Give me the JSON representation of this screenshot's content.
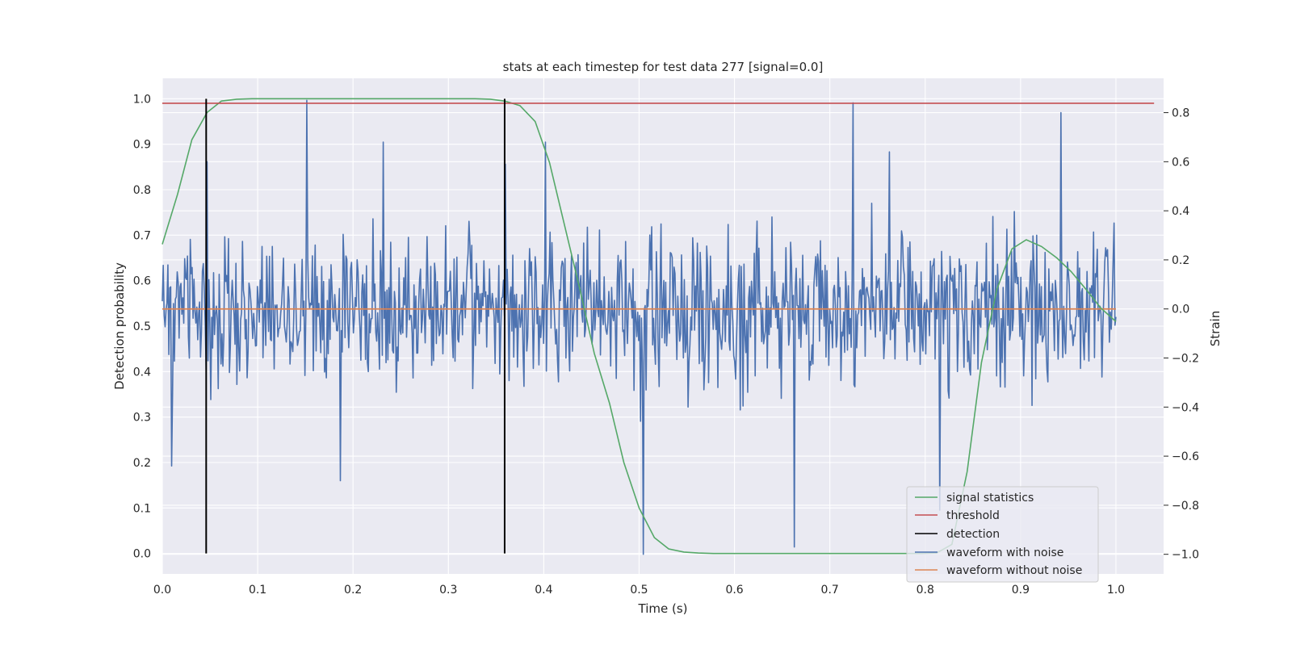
{
  "chart_data": {
    "type": "line",
    "title": "stats at each timestep for test data 277 [signal=0.0]",
    "xlabel": "Time (s)",
    "ylabel": "Detection probability",
    "y2label": "Strain",
    "xlim": [
      0.0,
      1.05
    ],
    "ylim": [
      -0.045,
      1.045
    ],
    "y2lim": [
      -1.08,
      0.94
    ],
    "xticks": [
      "0.0",
      "0.1",
      "0.2",
      "0.3",
      "0.4",
      "0.5",
      "0.6",
      "0.7",
      "0.8",
      "0.9",
      "1.0"
    ],
    "yticks": [
      "0.0",
      "0.1",
      "0.2",
      "0.3",
      "0.4",
      "0.5",
      "0.6",
      "0.7",
      "0.8",
      "0.9",
      "1.0"
    ],
    "y2ticks": [
      "−1.0",
      "−0.8",
      "−0.6",
      "−0.4",
      "−0.2",
      "0.0",
      "0.2",
      "0.4",
      "0.6",
      "0.8"
    ],
    "grid": true,
    "legend_position": "lower-right",
    "colors": {
      "signal_statistics": "#55a868",
      "threshold": "#c44e52",
      "detection": "#000000",
      "waveform_with_noise": "#4c72b0",
      "waveform_without_noise": "#dd8452",
      "plot_background": "#eaeaf2",
      "grid": "#ffffff"
    },
    "series": [
      {
        "name": "signal statistics",
        "axis": "left",
        "x": [
          0.0,
          0.016,
          0.031,
          0.047,
          0.062,
          0.078,
          0.094,
          0.109,
          0.125,
          0.141,
          0.156,
          0.172,
          0.188,
          0.203,
          0.219,
          0.234,
          0.25,
          0.266,
          0.281,
          0.297,
          0.312,
          0.328,
          0.344,
          0.359,
          0.375,
          0.391,
          0.406,
          0.422,
          0.438,
          0.453,
          0.469,
          0.484,
          0.5,
          0.516,
          0.531,
          0.547,
          0.562,
          0.578,
          0.594,
          0.609,
          0.625,
          0.641,
          0.656,
          0.672,
          0.688,
          0.703,
          0.719,
          0.734,
          0.75,
          0.766,
          0.781,
          0.797,
          0.812,
          0.828,
          0.844,
          0.859,
          0.875,
          0.891,
          0.906,
          0.922,
          0.938,
          0.953,
          0.969,
          0.984,
          1.0
        ],
        "values": [
          0.68,
          0.79,
          0.91,
          0.97,
          0.995,
          0.999,
          1.0,
          1.0,
          1.0,
          1.0,
          1.0,
          1.0,
          1.0,
          1.0,
          1.0,
          1.0,
          1.0,
          1.0,
          1.0,
          1.0,
          1.0,
          1.0,
          0.999,
          0.995,
          0.985,
          0.95,
          0.86,
          0.72,
          0.58,
          0.44,
          0.33,
          0.2,
          0.1,
          0.035,
          0.01,
          0.003,
          0.001,
          0.0,
          0.0,
          0.0,
          0.0,
          0.0,
          0.0,
          0.0,
          0.0,
          0.0,
          0.0,
          0.0,
          0.0,
          0.0,
          0.0,
          0.0,
          0.001,
          0.02,
          0.18,
          0.42,
          0.58,
          0.67,
          0.69,
          0.675,
          0.65,
          0.62,
          0.58,
          0.54,
          0.51
        ]
      },
      {
        "name": "threshold",
        "axis": "left",
        "x": [
          0.0,
          1.04
        ],
        "values": [
          0.99,
          0.99
        ]
      },
      {
        "name": "detection",
        "axis": "left",
        "segments": [
          {
            "x": 0.046,
            "y0": 0.0,
            "y1": 1.0
          },
          {
            "x": 0.359,
            "y0": 0.0,
            "y1": 1.0
          }
        ]
      },
      {
        "name": "waveform with noise",
        "axis": "right",
        "x_start": 0.0,
        "x_end": 1.0,
        "sample_count": 1024,
        "noise_sigma": 0.21,
        "peaks": [
          {
            "x": 0.01,
            "value": -0.64
          },
          {
            "x": 0.047,
            "value": 0.6
          },
          {
            "x": 0.152,
            "value": 0.85
          },
          {
            "x": 0.187,
            "value": -0.7
          },
          {
            "x": 0.232,
            "value": 0.68
          },
          {
            "x": 0.36,
            "value": 0.59
          },
          {
            "x": 0.402,
            "value": 0.68
          },
          {
            "x": 0.504,
            "value": -1.0
          },
          {
            "x": 0.663,
            "value": -0.97
          },
          {
            "x": 0.724,
            "value": 0.84
          },
          {
            "x": 0.762,
            "value": 0.64
          },
          {
            "x": 0.815,
            "value": -0.82
          },
          {
            "x": 0.942,
            "value": 0.8
          },
          {
            "x": 0.998,
            "value": 0.35
          }
        ]
      },
      {
        "name": "waveform without noise",
        "axis": "right",
        "x": [
          0.0,
          1.0
        ],
        "values": [
          0.0,
          0.0
        ]
      }
    ]
  }
}
